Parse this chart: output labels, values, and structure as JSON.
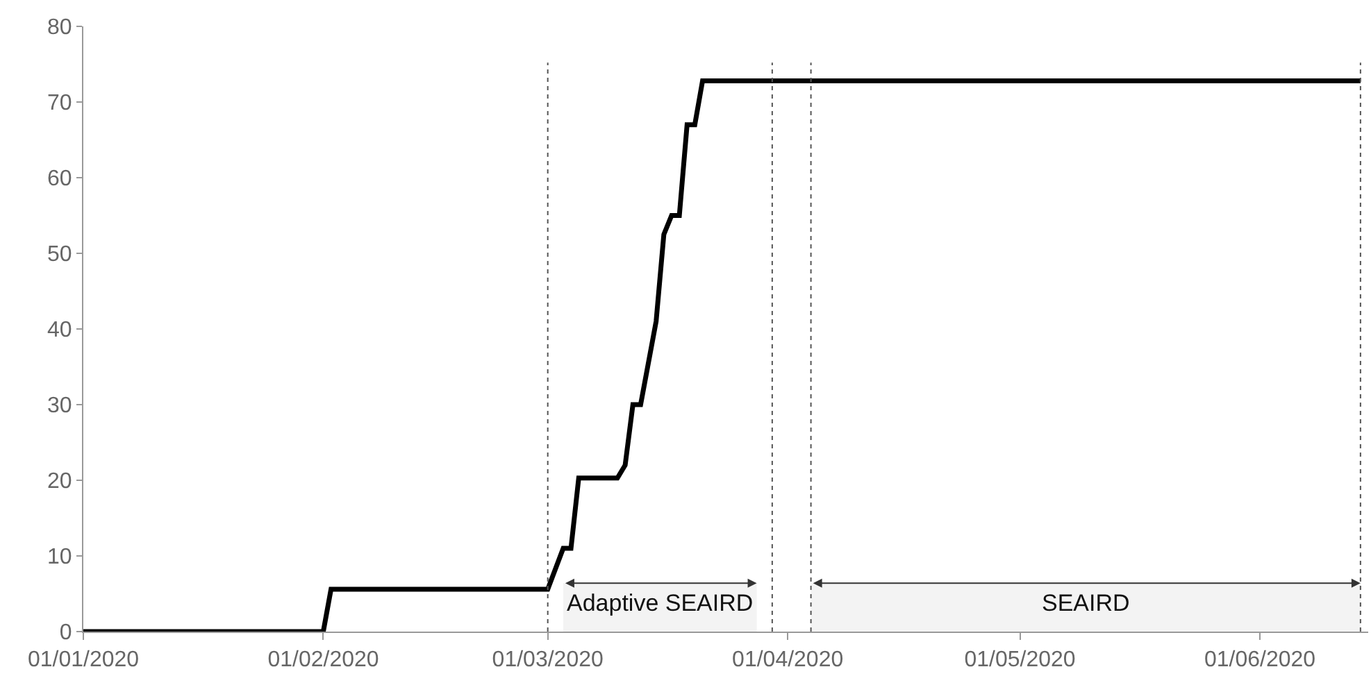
{
  "chart_data": {
    "type": "line",
    "x": [
      "2020-01-01",
      "2020-02-01",
      "2020-02-02",
      "2020-03-01",
      "2020-03-03",
      "2020-03-04",
      "2020-03-05",
      "2020-03-10",
      "2020-03-11",
      "2020-03-12",
      "2020-03-13",
      "2020-03-15",
      "2020-03-16",
      "2020-03-17",
      "2020-03-18",
      "2020-03-19",
      "2020-03-20",
      "2020-03-21",
      "2020-06-14"
    ],
    "series": [
      {
        "color": "#000000",
        "values": [
          0,
          0,
          5.6,
          5.6,
          11,
          11,
          20.3,
          20.3,
          22,
          30,
          30,
          41,
          52.5,
          55,
          55,
          67,
          67,
          72.8,
          72.8
        ]
      }
    ],
    "xlim": [
      "2020-01-01",
      "2020-06-15"
    ],
    "xticks": [
      {
        "value": "2020-01-01",
        "label": "01/01/2020"
      },
      {
        "value": "2020-02-01",
        "label": "01/02/2020"
      },
      {
        "value": "2020-03-01",
        "label": "01/03/2020"
      },
      {
        "value": "2020-04-01",
        "label": "01/04/2020"
      },
      {
        "value": "2020-05-01",
        "label": "01/05/2020"
      },
      {
        "value": "2020-06-01",
        "label": "01/06/2020"
      }
    ],
    "ylim": [
      0,
      80
    ],
    "yticks": [
      0,
      10,
      20,
      30,
      40,
      50,
      60,
      70,
      80
    ],
    "marker": "none",
    "line_style": "solid",
    "ref_lines": [
      {
        "axis": "x",
        "value": "2020-03-01",
        "color": "#555555",
        "line_style": "dotted"
      },
      {
        "axis": "x",
        "value": "2020-03-30",
        "color": "#555555",
        "line_style": "dotted"
      },
      {
        "axis": "x",
        "value": "2020-04-04",
        "color": "#555555",
        "line_style": "dotted"
      },
      {
        "axis": "x",
        "value": "2020-06-14",
        "color": "#555555",
        "line_style": "dotted"
      }
    ],
    "bands": [
      {
        "axis": "x",
        "from": "2020-03-03",
        "to": "2020-03-28",
        "label": "Adaptive SEAIRD",
        "color": "#f3f3f3"
      },
      {
        "axis": "x",
        "from": "2020-04-04",
        "to": "2020-06-14",
        "label": "SEAIRD",
        "color": "#f3f3f3"
      }
    ]
  }
}
